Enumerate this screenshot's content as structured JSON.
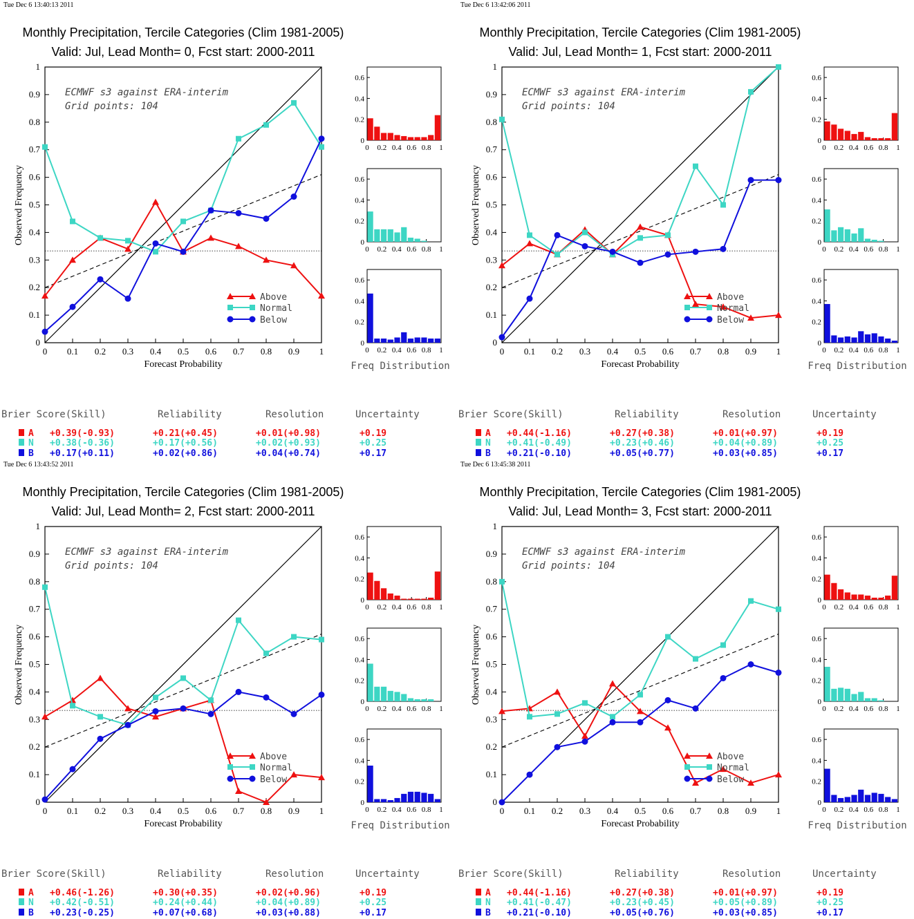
{
  "colors": {
    "above": "#ee1111",
    "normal": "#3dd6c4",
    "below": "#1010dd"
  },
  "panels": [
    {
      "timestamp": "Tue Dec  6 13:40:13 2011",
      "title1": "Monthly Precipitation, Tercile Categories (Clim 1981-2005)",
      "title2": "Valid: Jul, Lead Month= 0, Fcst start: 2000-2011",
      "model_note": "ECMWF s3 against ERA-interim",
      "grid_note": "Grid points:  104",
      "xlabel": "Forecast Probability",
      "ylabel": "Observed Frequency",
      "freq_label": "Freq Distribution",
      "legend": [
        "Above",
        "Normal",
        "Below"
      ],
      "score_headers": [
        "Brier Score(Skill)",
        "Reliability",
        "Resolution",
        "Uncertainty"
      ],
      "scores": [
        {
          "cat": "A",
          "brier": "+0.39(-0.93)",
          "rel": "+0.21(+0.45)",
          "res": "+0.01(+0.98)",
          "unc": "+0.19"
        },
        {
          "cat": "N",
          "brier": "+0.38(-0.36)",
          "rel": "+0.17(+0.56)",
          "res": "+0.02(+0.93)",
          "unc": "+0.25"
        },
        {
          "cat": "B",
          "brier": "+0.17(+0.11)",
          "rel": "+0.02(+0.86)",
          "res": "+0.04(+0.74)",
          "unc": "+0.17"
        }
      ]
    },
    {
      "timestamp": "Tue Dec  6 13:42:06 2011",
      "title1": "Monthly Precipitation, Tercile Categories (Clim 1981-2005)",
      "title2": "Valid: Jul, Lead Month= 1, Fcst start: 2000-2011",
      "model_note": "ECMWF s3 against ERA-interim",
      "grid_note": "Grid points:  104",
      "xlabel": "Forecast Probability",
      "ylabel": "Observed Frequency",
      "freq_label": "Freq Distribution",
      "legend": [
        "Above",
        "Normal",
        "Below"
      ],
      "score_headers": [
        "Brier Score(Skill)",
        "Reliability",
        "Resolution",
        "Uncertainty"
      ],
      "scores": [
        {
          "cat": "A",
          "brier": "+0.44(-1.16)",
          "rel": "+0.27(+0.38)",
          "res": "+0.01(+0.97)",
          "unc": "+0.19"
        },
        {
          "cat": "N",
          "brier": "+0.41(-0.49)",
          "rel": "+0.23(+0.46)",
          "res": "+0.04(+0.89)",
          "unc": "+0.25"
        },
        {
          "cat": "B",
          "brier": "+0.21(-0.10)",
          "rel": "+0.05(+0.77)",
          "res": "+0.03(+0.85)",
          "unc": "+0.17"
        }
      ]
    },
    {
      "timestamp": "Tue Dec  6 13:43:52 2011",
      "title1": "Monthly Precipitation, Tercile Categories (Clim 1981-2005)",
      "title2": "Valid: Jul, Lead Month= 2, Fcst start: 2000-2011",
      "model_note": "ECMWF s3 against ERA-interim",
      "grid_note": "Grid points:  104",
      "xlabel": "Forecast Probability",
      "ylabel": "Observed Frequency",
      "freq_label": "Freq Distribution",
      "legend": [
        "Above",
        "Normal",
        "Below"
      ],
      "score_headers": [
        "Brier Score(Skill)",
        "Reliability",
        "Resolution",
        "Uncertainty"
      ],
      "scores": [
        {
          "cat": "A",
          "brier": "+0.46(-1.26)",
          "rel": "+0.30(+0.35)",
          "res": "+0.02(+0.96)",
          "unc": "+0.19"
        },
        {
          "cat": "N",
          "brier": "+0.42(-0.51)",
          "rel": "+0.24(+0.44)",
          "res": "+0.04(+0.89)",
          "unc": "+0.25"
        },
        {
          "cat": "B",
          "brier": "+0.23(-0.25)",
          "rel": "+0.07(+0.68)",
          "res": "+0.03(+0.88)",
          "unc": "+0.17"
        }
      ]
    },
    {
      "timestamp": "Tue Dec  6 13:45:38 2011",
      "title1": "Monthly Precipitation, Tercile Categories (Clim 1981-2005)",
      "title2": "Valid: Jul, Lead Month= 3, Fcst start: 2000-2011",
      "model_note": "ECMWF s3 against ERA-interim",
      "grid_note": "Grid points:  104",
      "xlabel": "Forecast Probability",
      "ylabel": "Observed Frequency",
      "freq_label": "Freq Distribution",
      "legend": [
        "Above",
        "Normal",
        "Below"
      ],
      "score_headers": [
        "Brier Score(Skill)",
        "Reliability",
        "Resolution",
        "Uncertainty"
      ],
      "scores": [
        {
          "cat": "A",
          "brier": "+0.44(-1.16)",
          "rel": "+0.27(+0.38)",
          "res": "+0.01(+0.97)",
          "unc": "+0.19"
        },
        {
          "cat": "N",
          "brier": "+0.41(-0.47)",
          "rel": "+0.23(+0.45)",
          "res": "+0.05(+0.89)",
          "unc": "+0.25"
        },
        {
          "cat": "B",
          "brier": "+0.21(-0.10)",
          "rel": "+0.05(+0.76)",
          "res": "+0.03(+0.85)",
          "unc": "+0.17"
        }
      ]
    }
  ],
  "chart_data": [
    {
      "type": "line",
      "title": "Monthly Precipitation, Tercile Categories (Clim 1981-2005) / Valid: Jul, Lead Month= 0, Fcst start: 2000-2011",
      "xlabel": "Forecast Probability",
      "ylabel": "Observed Frequency",
      "xlim": [
        0,
        1
      ],
      "ylim": [
        0,
        1
      ],
      "x": [
        0,
        0.1,
        0.2,
        0.3,
        0.4,
        0.5,
        0.6,
        0.7,
        0.8,
        0.9,
        1.0
      ],
      "series": [
        {
          "name": "Above",
          "values": [
            0.17,
            0.3,
            0.38,
            0.34,
            0.51,
            0.33,
            0.38,
            0.35,
            0.3,
            0.28,
            0.17
          ]
        },
        {
          "name": "Normal",
          "values": [
            0.71,
            0.44,
            0.38,
            0.37,
            0.33,
            0.44,
            0.48,
            0.74,
            0.79,
            0.87,
            0.71
          ]
        },
        {
          "name": "Below",
          "values": [
            0.04,
            0.13,
            0.23,
            0.16,
            0.36,
            0.33,
            0.48,
            0.47,
            0.45,
            0.53,
            0.74
          ]
        }
      ],
      "climatology_line_y": 0.333,
      "skill_line": [
        [
          0,
          0.2
        ],
        [
          1,
          0.61
        ]
      ],
      "histograms": {
        "ylim": [
          0,
          0.7
        ],
        "Above": [
          0.21,
          0.13,
          0.07,
          0.07,
          0.05,
          0.04,
          0.03,
          0.03,
          0.03,
          0.05,
          0.24
        ],
        "Normal": [
          0.29,
          0.12,
          0.12,
          0.12,
          0.09,
          0.14,
          0.04,
          0.03,
          0.01,
          0.0,
          0.0
        ],
        "Below": [
          0.47,
          0.04,
          0.04,
          0.03,
          0.05,
          0.1,
          0.04,
          0.05,
          0.05,
          0.04,
          0.04
        ]
      }
    },
    {
      "type": "line",
      "title": "Monthly Precipitation, Tercile Categories (Clim 1981-2005) / Valid: Jul, Lead Month= 1, Fcst start: 2000-2011",
      "xlabel": "Forecast Probability",
      "ylabel": "Observed Frequency",
      "xlim": [
        0,
        1
      ],
      "ylim": [
        0,
        1
      ],
      "x": [
        0,
        0.1,
        0.2,
        0.3,
        0.4,
        0.5,
        0.6,
        0.7,
        0.8,
        0.9,
        1.0
      ],
      "series": [
        {
          "name": "Above",
          "values": [
            0.28,
            0.36,
            0.32,
            0.41,
            0.32,
            0.42,
            0.39,
            0.14,
            0.13,
            0.09,
            0.1
          ]
        },
        {
          "name": "Normal",
          "values": [
            0.81,
            0.39,
            0.32,
            0.4,
            0.32,
            0.38,
            0.39,
            0.64,
            0.5,
            0.91,
            1.0
          ]
        },
        {
          "name": "Below",
          "values": [
            0.02,
            0.16,
            0.39,
            0.35,
            0.33,
            0.29,
            0.32,
            0.33,
            0.34,
            0.59,
            0.59
          ]
        }
      ],
      "climatology_line_y": 0.333,
      "skill_line": [
        [
          0,
          0.2
        ],
        [
          1,
          0.61
        ]
      ],
      "histograms": {
        "ylim": [
          0,
          0.7
        ],
        "Above": [
          0.18,
          0.15,
          0.11,
          0.09,
          0.06,
          0.08,
          0.03,
          0.02,
          0.02,
          0.02,
          0.26
        ],
        "Normal": [
          0.31,
          0.11,
          0.14,
          0.12,
          0.08,
          0.13,
          0.03,
          0.02,
          0.01,
          0.0,
          0.0
        ],
        "Below": [
          0.37,
          0.07,
          0.05,
          0.06,
          0.05,
          0.11,
          0.08,
          0.09,
          0.06,
          0.04,
          0.02
        ]
      }
    },
    {
      "type": "line",
      "title": "Monthly Precipitation, Tercile Categories (Clim 1981-2005) / Valid: Jul, Lead Month= 2, Fcst start: 2000-2011",
      "xlabel": "Forecast Probability",
      "ylabel": "Observed Frequency",
      "xlim": [
        0,
        1
      ],
      "ylim": [
        0,
        1
      ],
      "x": [
        0,
        0.1,
        0.2,
        0.3,
        0.4,
        0.5,
        0.6,
        0.7,
        0.8,
        0.9,
        1.0
      ],
      "series": [
        {
          "name": "Above",
          "values": [
            0.31,
            0.37,
            0.45,
            0.34,
            0.31,
            0.34,
            0.37,
            0.04,
            0.0,
            0.1,
            0.09
          ]
        },
        {
          "name": "Normal",
          "values": [
            0.78,
            0.35,
            0.31,
            0.28,
            0.38,
            0.45,
            0.37,
            0.66,
            0.54,
            0.6,
            0.59
          ]
        },
        {
          "name": "Below",
          "values": [
            0.01,
            0.12,
            0.23,
            0.28,
            0.33,
            0.34,
            0.32,
            0.4,
            0.38,
            0.32,
            0.39
          ]
        }
      ],
      "climatology_line_y": 0.333,
      "skill_line": [
        [
          0,
          0.2
        ],
        [
          1,
          0.61
        ]
      ],
      "histograms": {
        "ylim": [
          0,
          0.7
        ],
        "Above": [
          0.26,
          0.18,
          0.11,
          0.06,
          0.04,
          0.01,
          0.01,
          0.01,
          0.01,
          0.02,
          0.27
        ],
        "Normal": [
          0.36,
          0.14,
          0.14,
          0.1,
          0.09,
          0.07,
          0.03,
          0.02,
          0.02,
          0.02,
          0.0
        ],
        "Below": [
          0.35,
          0.03,
          0.03,
          0.02,
          0.04,
          0.08,
          0.1,
          0.1,
          0.09,
          0.08,
          0.03
        ]
      }
    },
    {
      "type": "line",
      "title": "Monthly Precipitation, Tercile Categories (Clim 1981-2005) / Valid: Jul, Lead Month= 3, Fcst start: 2000-2011",
      "xlabel": "Forecast Probability",
      "ylabel": "Observed Frequency",
      "xlim": [
        0,
        1
      ],
      "ylim": [
        0,
        1
      ],
      "x": [
        0,
        0.1,
        0.2,
        0.3,
        0.4,
        0.5,
        0.6,
        0.7,
        0.8,
        0.9,
        1.0
      ],
      "series": [
        {
          "name": "Above",
          "values": [
            0.33,
            0.34,
            0.4,
            0.24,
            0.43,
            0.33,
            0.27,
            0.07,
            0.12,
            0.07,
            0.1
          ]
        },
        {
          "name": "Normal",
          "values": [
            0.8,
            0.31,
            0.32,
            0.36,
            0.31,
            0.39,
            0.6,
            0.52,
            0.57,
            0.73,
            0.7
          ]
        },
        {
          "name": "Below",
          "values": [
            0.0,
            0.1,
            0.2,
            0.22,
            0.29,
            0.29,
            0.37,
            0.34,
            0.45,
            0.5,
            0.47
          ]
        }
      ],
      "climatology_line_y": 0.333,
      "skill_line": [
        [
          0,
          0.2
        ],
        [
          1,
          0.61
        ]
      ],
      "histograms": {
        "ylim": [
          0,
          0.7
        ],
        "Above": [
          0.24,
          0.16,
          0.1,
          0.07,
          0.05,
          0.05,
          0.04,
          0.02,
          0.02,
          0.04,
          0.23
        ],
        "Normal": [
          0.33,
          0.12,
          0.13,
          0.12,
          0.07,
          0.09,
          0.03,
          0.03,
          0.01,
          0.0,
          0.0
        ],
        "Below": [
          0.32,
          0.07,
          0.04,
          0.05,
          0.07,
          0.12,
          0.07,
          0.09,
          0.08,
          0.05,
          0.03
        ]
      }
    }
  ]
}
